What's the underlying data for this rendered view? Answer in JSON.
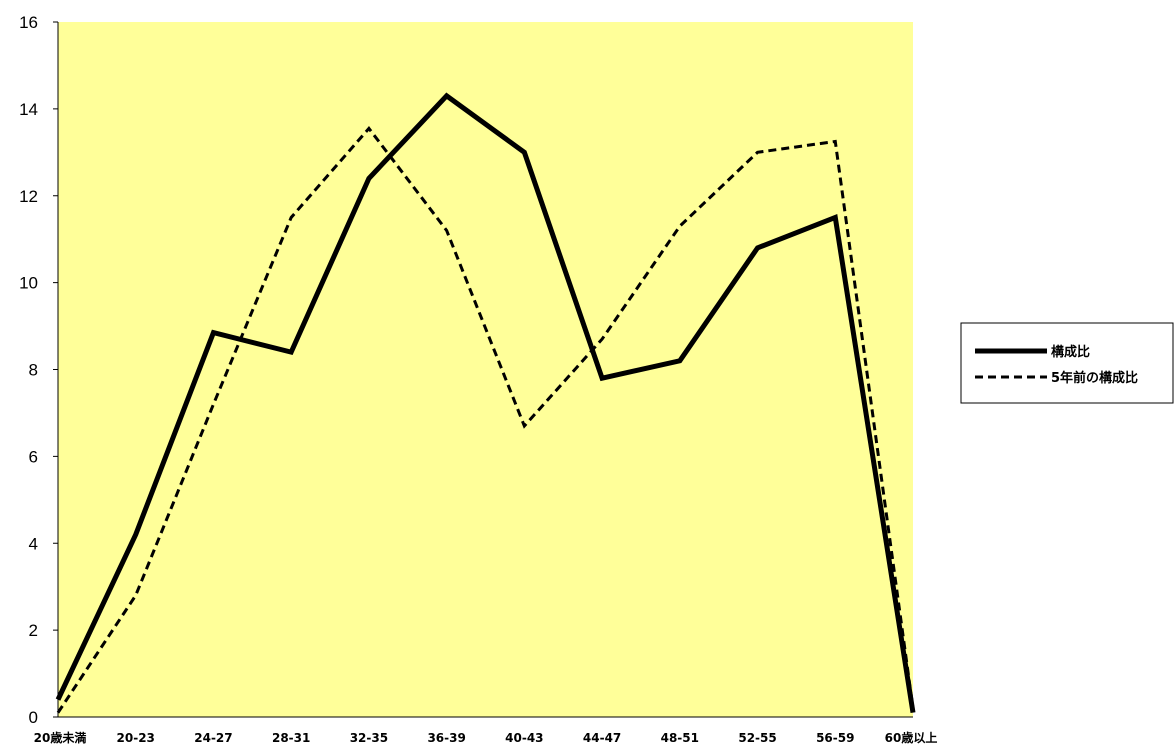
{
  "chart_data": {
    "type": "line",
    "categories": [
      "20歳未満",
      "20-23",
      "24-27",
      "28-31",
      "32-35",
      "36-39",
      "40-43",
      "44-47",
      "48-51",
      "52-55",
      "56-59",
      "60歳以上"
    ],
    "series": [
      {
        "name": "構成比",
        "values": [
          0.4,
          4.2,
          8.85,
          8.4,
          12.4,
          14.3,
          13.0,
          7.8,
          8.2,
          10.8,
          11.5,
          0.1
        ],
        "style": "solid",
        "color": "#000000"
      },
      {
        "name": "5年前の構成比",
        "values": [
          0.1,
          2.8,
          7.2,
          11.5,
          13.55,
          11.2,
          6.7,
          8.7,
          11.3,
          13.0,
          13.25,
          0.2
        ],
        "style": "dashed",
        "color": "#000000"
      }
    ],
    "ylim": [
      0,
      16
    ],
    "yticks": [
      "0",
      "2",
      "4",
      "6",
      "8",
      "10",
      "12",
      "14",
      "16"
    ],
    "grid": false,
    "legend_position": "right",
    "plot_background": "#ffff99"
  }
}
